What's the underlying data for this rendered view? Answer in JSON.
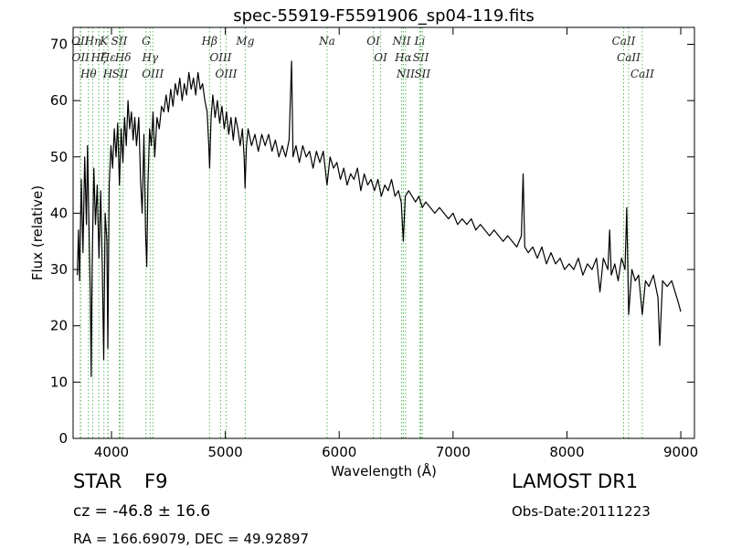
{
  "chart_data": {
    "type": "line",
    "title": "spec-55919-F5591906_sp04-119.fits",
    "x_label": "Wavelength (Å)",
    "y_label": "Flux (relative)",
    "color": "#000000",
    "line_color": "#5cb85c",
    "xlim": [
      3663,
      9120
    ],
    "ylim": [
      0,
      73
    ],
    "xticks": [
      4000,
      5000,
      6000,
      7000,
      8000,
      9000
    ],
    "yticks": [
      0,
      10,
      20,
      30,
      40,
      50,
      60,
      70
    ],
    "x": [
      3700,
      3710,
      3720,
      3735,
      3750,
      3765,
      3780,
      3790,
      3800,
      3815,
      3822,
      3830,
      3845,
      3860,
      3875,
      3890,
      3905,
      3920,
      3932,
      3945,
      3960,
      3968,
      3980,
      3995,
      4010,
      4025,
      4040,
      4055,
      4070,
      4085,
      4100,
      4115,
      4130,
      4145,
      4160,
      4175,
      4190,
      4205,
      4220,
      4240,
      4255,
      4270,
      4285,
      4300,
      4310,
      4320,
      4335,
      4350,
      4365,
      4380,
      4400,
      4420,
      4440,
      4460,
      4480,
      4500,
      4520,
      4540,
      4560,
      4580,
      4600,
      4620,
      4640,
      4660,
      4680,
      4700,
      4720,
      4740,
      4760,
      4780,
      4800,
      4820,
      4840,
      4855,
      4862,
      4875,
      4890,
      4910,
      4930,
      4950,
      4970,
      4990,
      5010,
      5030,
      5050,
      5070,
      5090,
      5110,
      5130,
      5150,
      5165,
      5173,
      5185,
      5200,
      5230,
      5260,
      5290,
      5320,
      5350,
      5380,
      5410,
      5440,
      5470,
      5500,
      5530,
      5560,
      5582,
      5595,
      5620,
      5650,
      5680,
      5710,
      5740,
      5770,
      5800,
      5830,
      5860,
      5893,
      5920,
      5950,
      5980,
      6010,
      6040,
      6070,
      6100,
      6130,
      6160,
      6190,
      6220,
      6250,
      6280,
      6310,
      6340,
      6370,
      6400,
      6430,
      6460,
      6490,
      6520,
      6545,
      6563,
      6580,
      6610,
      6640,
      6670,
      6700,
      6730,
      6760,
      6800,
      6840,
      6880,
      6920,
      6960,
      7000,
      7040,
      7080,
      7120,
      7160,
      7200,
      7240,
      7280,
      7320,
      7360,
      7400,
      7440,
      7480,
      7520,
      7560,
      7600,
      7615,
      7630,
      7660,
      7700,
      7740,
      7780,
      7820,
      7860,
      7900,
      7940,
      7980,
      8020,
      8060,
      8100,
      8140,
      8180,
      8220,
      8260,
      8290,
      8320,
      8360,
      8375,
      8390,
      8420,
      8450,
      8480,
      8510,
      8525,
      8542,
      8570,
      8600,
      8630,
      8662,
      8690,
      8720,
      8760,
      8800,
      8815,
      8840,
      8880,
      8920,
      8950,
      8980,
      9000
    ],
    "values": [
      29,
      37,
      28,
      46,
      33,
      50,
      38,
      52,
      40,
      25,
      11,
      30,
      48,
      38,
      45,
      32,
      44,
      30,
      14,
      40,
      35,
      16,
      45,
      52,
      48,
      55,
      50,
      56,
      45,
      55,
      49,
      57,
      52,
      60,
      55,
      58,
      53,
      57,
      52,
      57,
      46,
      40,
      54,
      36,
      30.5,
      45,
      55,
      52,
      58,
      50,
      57,
      55,
      59,
      58,
      61,
      58,
      62,
      59,
      63,
      61,
      64,
      60,
      63,
      61,
      65,
      62,
      64,
      61,
      65,
      62,
      63,
      60,
      58,
      52,
      48,
      57,
      61,
      57,
      60,
      56,
      59,
      55,
      58,
      54,
      57,
      53,
      57,
      55,
      52,
      55,
      50,
      44.5,
      52,
      55,
      52,
      54,
      51,
      54,
      52,
      54,
      51,
      53,
      50,
      52,
      50,
      53,
      67,
      50,
      52,
      49,
      52,
      50,
      51,
      48,
      51,
      49,
      51,
      45,
      50,
      48,
      49,
      46,
      48,
      45,
      47,
      46,
      48,
      44,
      47,
      45,
      46,
      44,
      46,
      43,
      45,
      44,
      46,
      43,
      44,
      42,
      35,
      43,
      44,
      43,
      42,
      43,
      41,
      42,
      41,
      40,
      41,
      40,
      39,
      40,
      38,
      39,
      38,
      39,
      37,
      38,
      37,
      36,
      37,
      36,
      35,
      36,
      35,
      34,
      36,
      47,
      34,
      33,
      34,
      32,
      34,
      31,
      33,
      31,
      32,
      30,
      31,
      30,
      32,
      29,
      31,
      30,
      32,
      26,
      32,
      30,
      37,
      29,
      31,
      28,
      32,
      30,
      41,
      22,
      30,
      28,
      29,
      22,
      28,
      27,
      29,
      25,
      16.5,
      28,
      27,
      28,
      26,
      24,
      22.5
    ],
    "lines": [
      {
        "label": "OII",
        "x": 3726
      },
      {
        "label": "OII",
        "x": 3729
      },
      {
        "label": "Hθ",
        "x": 3798
      },
      {
        "label": "Hη",
        "x": 3835
      },
      {
        "label": "Hζ",
        "x": 3889
      },
      {
        "label": "K",
        "x": 3934
      },
      {
        "label": "H",
        "x": 3968
      },
      {
        "label": "Hε",
        "x": 3970
      },
      {
        "label": "SII",
        "x": 4068
      },
      {
        "label": "SII",
        "x": 4076
      },
      {
        "label": "Hδ",
        "x": 4102
      },
      {
        "label": "G",
        "x": 4304
      },
      {
        "label": "Hγ",
        "x": 4340
      },
      {
        "label": "OIII",
        "x": 4363
      },
      {
        "label": "Hβ",
        "x": 4861
      },
      {
        "label": "OIII",
        "x": 4959
      },
      {
        "label": "OIII",
        "x": 5007
      },
      {
        "label": "Mg",
        "x": 5175
      },
      {
        "label": "Na",
        "x": 5894
      },
      {
        "label": "OI",
        "x": 6300
      },
      {
        "label": "OI",
        "x": 6364
      },
      {
        "label": "NII",
        "x": 6548
      },
      {
        "label": "Hα",
        "x": 6563
      },
      {
        "label": "NII",
        "x": 6583
      },
      {
        "label": "Li",
        "x": 6708
      },
      {
        "label": "SII",
        "x": 6717
      },
      {
        "label": "SII",
        "x": 6731
      },
      {
        "label": "CaII",
        "x": 8498
      },
      {
        "label": "CaII",
        "x": 8542
      },
      {
        "label": "CaII",
        "x": 8662
      }
    ]
  },
  "footer": {
    "object_class": "STAR",
    "subclass": "F9",
    "redshift": "cz = -46.8 ± 16.6",
    "coordinates": "RA = 166.69079, DEC = 49.92897",
    "survey": "LAMOST DR1",
    "obs_date": "Obs-Date:20111223"
  }
}
